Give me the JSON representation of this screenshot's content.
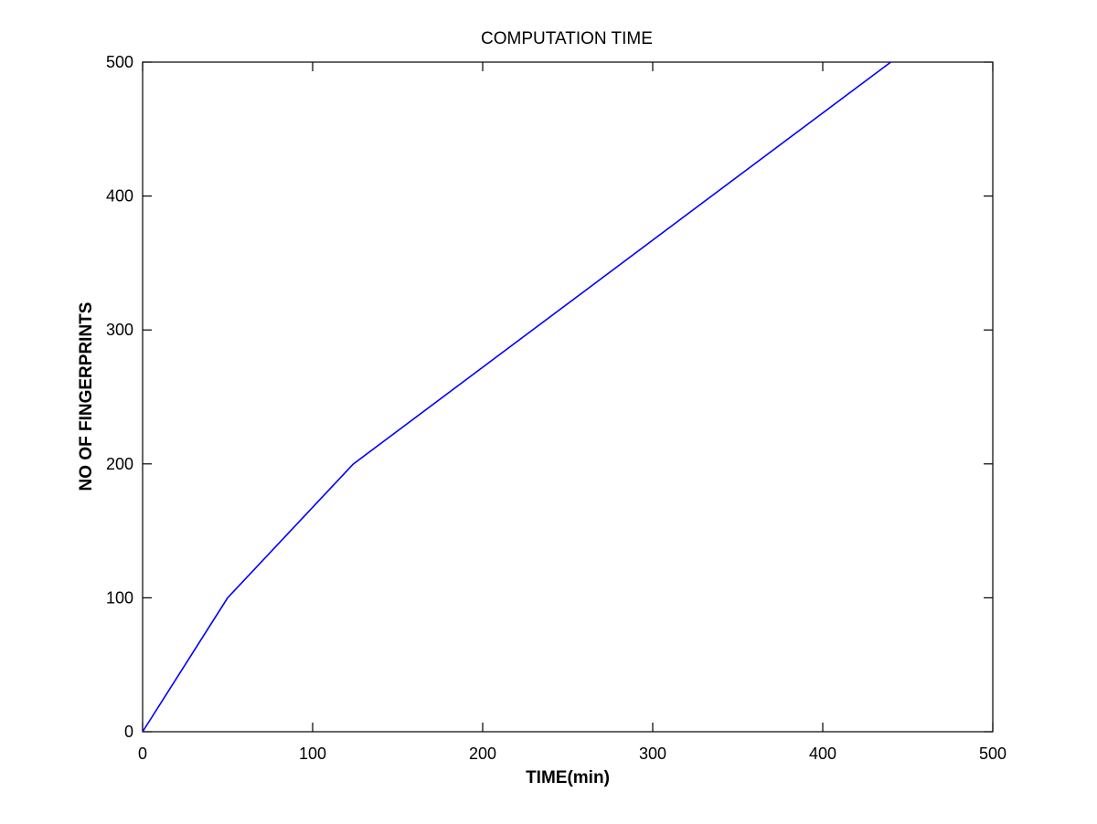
{
  "chart_data": {
    "type": "line",
    "title": "COMPUTATION TIME",
    "xlabel": "TIME(min)",
    "ylabel": "NO OF FINGERPRINTS",
    "xlim": [
      0,
      500
    ],
    "ylim": [
      0,
      500
    ],
    "xticks": [
      "0",
      "100",
      "200",
      "300",
      "400",
      "500"
    ],
    "yticks": [
      "0",
      "100",
      "200",
      "300",
      "400",
      "500"
    ],
    "grid": false,
    "line_color": "#0000ff",
    "series": [
      {
        "x": [
          0,
          50,
          124,
          440
        ],
        "y": [
          0,
          100,
          200,
          500
        ]
      }
    ]
  }
}
